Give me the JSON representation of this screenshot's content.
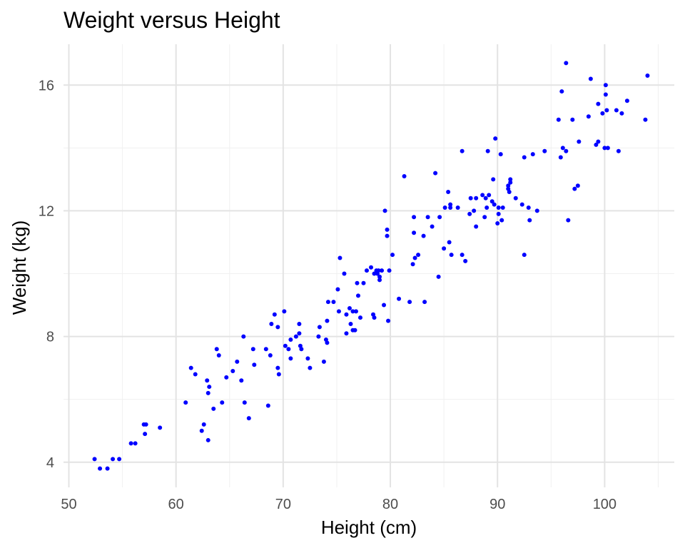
{
  "chart_data": {
    "type": "scatter",
    "title": "Weight versus Height",
    "xlabel": "Height (cm)",
    "ylabel": "Weight (kg)",
    "xlim": [
      49.5,
      106.5
    ],
    "ylim": [
      3.2,
      17.3
    ],
    "x_ticks": [
      50,
      60,
      70,
      80,
      90,
      100
    ],
    "x_tick_labels": [
      "50",
      "60",
      "70",
      "80",
      "90",
      "100"
    ],
    "y_ticks": [
      4,
      8,
      12,
      16
    ],
    "y_tick_labels": [
      "4",
      "8",
      "12",
      "16"
    ],
    "grid": true,
    "legend": "none",
    "point_color": "#0000ff",
    "points": [
      [
        52.4,
        4.1
      ],
      [
        52.9,
        3.8
      ],
      [
        53.6,
        3.8
      ],
      [
        54.1,
        4.1
      ],
      [
        54.7,
        4.1
      ],
      [
        55.8,
        4.6
      ],
      [
        56.2,
        4.6
      ],
      [
        57.0,
        5.2
      ],
      [
        57.2,
        5.2
      ],
      [
        57.1,
        4.9
      ],
      [
        58.5,
        5.1
      ],
      [
        60.9,
        5.9
      ],
      [
        61.4,
        7.0
      ],
      [
        61.8,
        6.8
      ],
      [
        62.4,
        5.0
      ],
      [
        62.6,
        5.2
      ],
      [
        62.9,
        6.6
      ],
      [
        63.0,
        6.2
      ],
      [
        63.1,
        6.4
      ],
      [
        63.0,
        4.7
      ],
      [
        63.5,
        5.7
      ],
      [
        63.8,
        7.6
      ],
      [
        64.0,
        7.4
      ],
      [
        64.3,
        5.9
      ],
      [
        64.7,
        6.7
      ],
      [
        65.3,
        6.9
      ],
      [
        65.7,
        7.2
      ],
      [
        66.1,
        6.6
      ],
      [
        66.3,
        8.0
      ],
      [
        66.4,
        5.9
      ],
      [
        66.8,
        5.4
      ],
      [
        67.2,
        7.6
      ],
      [
        67.3,
        7.1
      ],
      [
        68.4,
        7.6
      ],
      [
        68.6,
        5.8
      ],
      [
        68.8,
        7.4
      ],
      [
        68.9,
        8.4
      ],
      [
        69.2,
        8.7
      ],
      [
        69.5,
        8.3
      ],
      [
        69.5,
        7.0
      ],
      [
        69.6,
        6.8
      ],
      [
        70.1,
        8.8
      ],
      [
        70.2,
        7.7
      ],
      [
        70.5,
        7.6
      ],
      [
        70.7,
        7.3
      ],
      [
        70.7,
        7.9
      ],
      [
        71.2,
        8.0
      ],
      [
        71.5,
        8.1
      ],
      [
        71.6,
        7.7
      ],
      [
        71.5,
        8.4
      ],
      [
        71.7,
        7.6
      ],
      [
        72.3,
        7.3
      ],
      [
        72.5,
        7.0
      ],
      [
        73.3,
        8.0
      ],
      [
        73.4,
        8.3
      ],
      [
        73.8,
        7.2
      ],
      [
        74.0,
        7.9
      ],
      [
        74.1,
        7.8
      ],
      [
        74.1,
        8.5
      ],
      [
        74.2,
        9.1
      ],
      [
        74.7,
        9.1
      ],
      [
        75.1,
        9.5
      ],
      [
        75.2,
        8.8
      ],
      [
        75.3,
        10.5
      ],
      [
        75.7,
        10.0
      ],
      [
        75.9,
        8.1
      ],
      [
        75.9,
        8.7
      ],
      [
        76.2,
        8.9
      ],
      [
        76.3,
        8.4
      ],
      [
        76.5,
        8.2
      ],
      [
        76.5,
        8.8
      ],
      [
        76.7,
        8.2
      ],
      [
        76.8,
        8.8
      ],
      [
        76.9,
        9.7
      ],
      [
        77.0,
        9.3
      ],
      [
        77.2,
        8.6
      ],
      [
        77.5,
        9.7
      ],
      [
        77.8,
        10.1
      ],
      [
        78.2,
        10.2
      ],
      [
        78.4,
        8.7
      ],
      [
        78.5,
        8.6
      ],
      [
        78.5,
        10.0
      ],
      [
        78.7,
        10.1
      ],
      [
        78.8,
        10.0
      ],
      [
        78.9,
        10.1
      ],
      [
        79.0,
        9.8
      ],
      [
        79.0,
        9.9
      ],
      [
        79.2,
        10.1
      ],
      [
        79.4,
        9.0
      ],
      [
        79.5,
        12.0
      ],
      [
        79.7,
        11.2
      ],
      [
        79.7,
        11.4
      ],
      [
        79.8,
        8.5
      ],
      [
        79.9,
        10.1
      ],
      [
        80.2,
        10.6
      ],
      [
        80.8,
        9.2
      ],
      [
        81.3,
        13.1
      ],
      [
        81.8,
        9.1
      ],
      [
        82.1,
        10.3
      ],
      [
        82.2,
        11.8
      ],
      [
        82.2,
        11.3
      ],
      [
        82.3,
        10.5
      ],
      [
        82.6,
        10.6
      ],
      [
        83.1,
        11.2
      ],
      [
        83.2,
        9.1
      ],
      [
        83.5,
        11.8
      ],
      [
        83.9,
        11.5
      ],
      [
        84.2,
        13.2
      ],
      [
        84.5,
        9.9
      ],
      [
        84.6,
        11.8
      ],
      [
        85.0,
        10.8
      ],
      [
        85.1,
        12.1
      ],
      [
        85.4,
        12.6
      ],
      [
        85.5,
        11.0
      ],
      [
        85.6,
        12.1
      ],
      [
        85.6,
        12.2
      ],
      [
        85.7,
        10.6
      ],
      [
        86.3,
        12.1
      ],
      [
        86.7,
        13.9
      ],
      [
        86.7,
        10.6
      ],
      [
        87.0,
        10.4
      ],
      [
        87.5,
        12.4
      ],
      [
        87.4,
        11.9
      ],
      [
        87.8,
        12.0
      ],
      [
        88.0,
        12.4
      ],
      [
        88.0,
        11.5
      ],
      [
        88.6,
        12.5
      ],
      [
        88.8,
        11.8
      ],
      [
        88.9,
        12.4
      ],
      [
        89.0,
        12.1
      ],
      [
        89.1,
        13.9
      ],
      [
        89.2,
        12.5
      ],
      [
        89.5,
        12.3
      ],
      [
        89.6,
        13.0
      ],
      [
        89.7,
        12.2
      ],
      [
        89.8,
        14.3
      ],
      [
        90.0,
        11.6
      ],
      [
        90.1,
        12.1
      ],
      [
        90.1,
        11.9
      ],
      [
        90.3,
        13.8
      ],
      [
        90.4,
        11.7
      ],
      [
        90.5,
        12.1
      ],
      [
        91.0,
        12.7
      ],
      [
        91.0,
        12.8
      ],
      [
        91.1,
        12.6
      ],
      [
        91.2,
        12.9
      ],
      [
        91.2,
        13.0
      ],
      [
        91.7,
        12.4
      ],
      [
        92.3,
        12.2
      ],
      [
        92.5,
        10.6
      ],
      [
        92.5,
        13.7
      ],
      [
        92.9,
        12.1
      ],
      [
        93.0,
        11.7
      ],
      [
        93.3,
        13.8
      ],
      [
        93.7,
        12.0
      ],
      [
        94.4,
        13.9
      ],
      [
        95.7,
        14.9
      ],
      [
        95.9,
        13.7
      ],
      [
        96.0,
        15.8
      ],
      [
        96.1,
        14.0
      ],
      [
        96.4,
        16.7
      ],
      [
        96.4,
        13.9
      ],
      [
        96.6,
        11.7
      ],
      [
        97.0,
        14.9
      ],
      [
        97.2,
        12.7
      ],
      [
        97.5,
        12.8
      ],
      [
        97.6,
        14.2
      ],
      [
        98.5,
        15.0
      ],
      [
        98.7,
        16.2
      ],
      [
        99.2,
        14.1
      ],
      [
        99.4,
        15.4
      ],
      [
        99.4,
        14.2
      ],
      [
        99.8,
        15.1
      ],
      [
        100.0,
        14.0
      ],
      [
        100.1,
        16.0
      ],
      [
        100.1,
        15.7
      ],
      [
        100.2,
        15.2
      ],
      [
        100.3,
        14.0
      ],
      [
        101.1,
        15.2
      ],
      [
        101.3,
        13.9
      ],
      [
        101.6,
        15.1
      ],
      [
        102.1,
        15.5
      ],
      [
        103.8,
        14.9
      ],
      [
        104.0,
        16.3
      ]
    ]
  }
}
